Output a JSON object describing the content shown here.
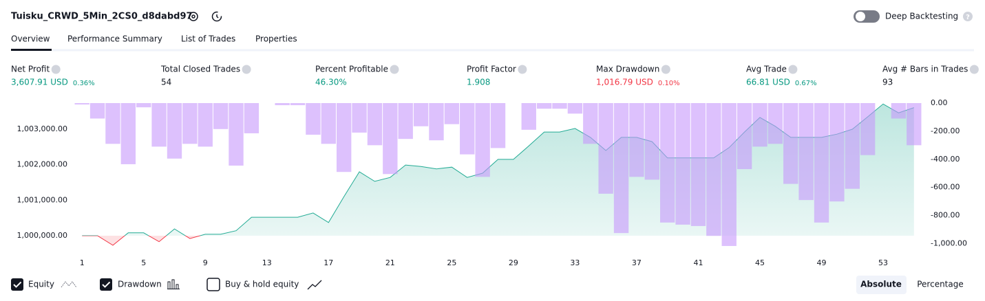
{
  "header": {
    "title": "Tuisku_CRWD_5Min_2CS0_d8dabd97",
    "toggle": "Deep Backtesting"
  },
  "tabs": [
    "Overview",
    "Performance Summary",
    "List of Trades",
    "Properties"
  ],
  "metrics": [
    {
      "label": "Net Profit",
      "value": "3,607.91 USD",
      "pct": "0.36%",
      "color": "#089981"
    },
    {
      "label": "Total Closed Trades",
      "value": "54",
      "color": "#131722"
    },
    {
      "label": "Percent Profitable",
      "value": "46.30%",
      "color": "#089981"
    },
    {
      "label": "Profit Factor",
      "value": "1.908",
      "color": "#089981"
    },
    {
      "label": "Max Drawdown",
      "value": "1,016.79 USD",
      "pct": "0.10%",
      "color": "#f23645"
    },
    {
      "label": "Avg Trade",
      "value": "66.81 USD",
      "pct": "0.67%",
      "color": "#089981"
    },
    {
      "label": "Avg # Bars in Trades",
      "value": "93",
      "color": "#131722"
    }
  ],
  "chart_data": {
    "type": "line",
    "x": [
      1,
      2,
      3,
      4,
      5,
      6,
      7,
      8,
      9,
      10,
      11,
      12,
      13,
      14,
      15,
      16,
      17,
      18,
      19,
      20,
      21,
      22,
      23,
      24,
      25,
      26,
      27,
      28,
      29,
      30,
      31,
      32,
      33,
      34,
      35,
      36,
      37,
      38,
      39,
      40,
      41,
      42,
      43,
      44,
      45,
      46,
      47,
      48,
      49,
      50,
      51,
      52,
      53,
      54,
      55
    ],
    "xlim": [
      0.5,
      55.5
    ],
    "xticks": [
      1,
      5,
      9,
      13,
      17,
      21,
      25,
      29,
      33,
      37,
      41,
      45,
      49,
      53
    ],
    "ylim": [
      999670,
      1003735
    ],
    "yticks": [
      {
        "value": 1000000,
        "label": "1,000,000.00"
      },
      {
        "value": 1001000,
        "label": "1,001,000.00"
      },
      {
        "value": 1002000,
        "label": "1,002,000.00"
      },
      {
        "value": 1003000,
        "label": "1,003,000.00"
      }
    ],
    "y2lim": [
      -1027,
      0
    ],
    "y2ticks": [
      {
        "value": 0,
        "label": "0.00"
      },
      {
        "value": -200,
        "label": "-200.00"
      },
      {
        "value": -400,
        "label": "-400.00"
      },
      {
        "value": -600,
        "label": "-600.00"
      },
      {
        "value": -800,
        "label": "-800.00"
      },
      {
        "value": -1000,
        "label": "-1,000.00"
      }
    ],
    "series": [
      {
        "name": "Equity",
        "type": "line",
        "color": "#22ab94",
        "negative_color": "#f23645",
        "values": [
          1000000,
          1000000,
          999730,
          1000080,
          1000080,
          999830,
          1000190,
          999920,
          1000040,
          1000040,
          1000140,
          1000520,
          1000520,
          1000520,
          1000520,
          1000640,
          1000370,
          1001100,
          1001800,
          1001530,
          1001640,
          1001990,
          1001950,
          1001880,
          1001930,
          1001640,
          1001760,
          1002150,
          1002150,
          1002530,
          1002920,
          1002920,
          1003020,
          1002770,
          1002400,
          1002770,
          1002770,
          1002650,
          1002190,
          1002190,
          1002190,
          1002190,
          1002480,
          1002920,
          1003330,
          1003080,
          1002770,
          1002770,
          1002770,
          1002860,
          1003000,
          1003350,
          1003710,
          1003460,
          1003608
        ]
      },
      {
        "name": "Drawdown",
        "type": "bar",
        "axis": "y2",
        "color": "#c797fb",
        "values": [
          -10,
          -110,
          -290,
          -435,
          -30,
          -310,
          -395,
          -290,
          -310,
          -185,
          -445,
          -215,
          0,
          -15,
          -15,
          -225,
          -290,
          -490,
          -210,
          -300,
          -505,
          -255,
          -165,
          -265,
          -150,
          -365,
          -525,
          -320,
          0,
          -190,
          -40,
          -40,
          -75,
          -290,
          -645,
          -925,
          -525,
          -545,
          -850,
          -865,
          -875,
          -945,
          -1017,
          -470,
          -310,
          -290,
          -575,
          -690,
          -850,
          -700,
          -610,
          -370,
          0,
          -110,
          -300
        ]
      }
    ]
  },
  "controls": {
    "buy_hold": "Buy & hold equity",
    "modes": [
      "Absolute",
      "Percentage"
    ]
  }
}
